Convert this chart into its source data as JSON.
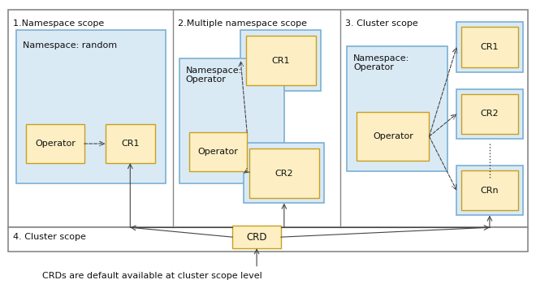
{
  "fig_width": 6.6,
  "fig_height": 3.66,
  "bg_color": "#ffffff",
  "border_color": "#888888",
  "divider_color": "#888888",
  "lb_fill": "#daeaf5",
  "lb_edge": "#7ab0d4",
  "yf_fill": "#fdefc3",
  "yf_edge": "#c8a020",
  "arrow_color": "#444444",
  "text_color": "#111111",
  "sec1_label": "1.Namespace scope",
  "sec2_label": "2.Multiple namespace scope",
  "sec3_label": "3. Cluster scope",
  "bot_label": "4. Cluster scope",
  "note_text": "CRDs are default available at cluster scope level"
}
